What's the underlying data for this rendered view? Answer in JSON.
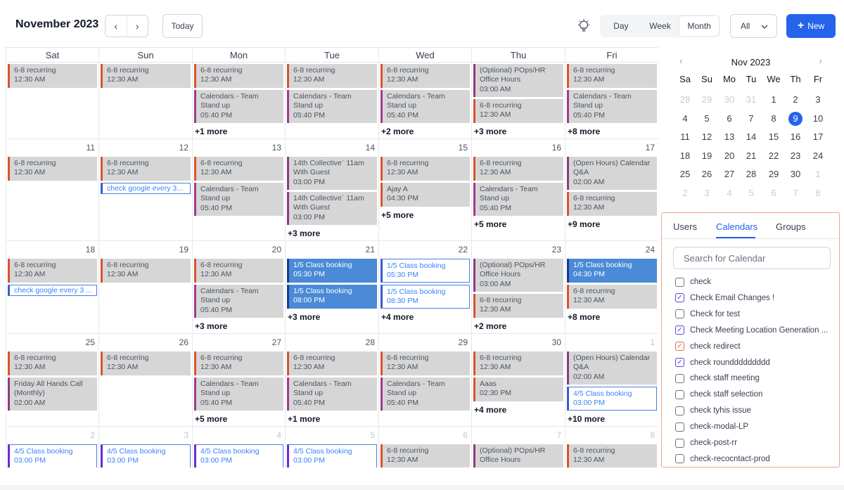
{
  "header": {
    "title": "November 2023",
    "today_label": "Today",
    "views": [
      "Day",
      "Week",
      "Month"
    ],
    "active_view": "Month",
    "filter_label": "All",
    "new_label": "New"
  },
  "weekdays": [
    "Sat",
    "Sun",
    "Mon",
    "Tue",
    "Wed",
    "Thu",
    "Fri"
  ],
  "weeks": [
    [
      {
        "day": "",
        "events": [
          {
            "t": "6-8 recurring",
            "s": "12:30 AM",
            "c": "red"
          }
        ],
        "more": ""
      },
      {
        "day": "",
        "events": [
          {
            "t": "6-8 recurring",
            "s": "12:30 AM",
            "c": "red"
          }
        ],
        "more": ""
      },
      {
        "day": "",
        "events": [
          {
            "t": "6-8 recurring",
            "s": "12:30 AM",
            "c": "red"
          },
          {
            "t": "Calendars - Team",
            "t2": "Stand up",
            "s": "05:40 PM",
            "c": "purple"
          }
        ],
        "more": "+1 more"
      },
      {
        "day": "",
        "events": [
          {
            "t": "6-8 recurring",
            "s": "12:30 AM",
            "c": "red"
          },
          {
            "t": "Calendars - Team",
            "t2": "Stand up",
            "s": "05:40 PM",
            "c": "purple"
          }
        ],
        "more": ""
      },
      {
        "day": "",
        "events": [
          {
            "t": "6-8 recurring",
            "s": "12:30 AM",
            "c": "red"
          },
          {
            "t": "Calendars - Team",
            "t2": "Stand up",
            "s": "05:40 PM",
            "c": "purple"
          }
        ],
        "more": "+2 more"
      },
      {
        "day": "",
        "events": [
          {
            "t": "(Optional) POps/HR",
            "t2": "Office Hours",
            "s": "03:00 AM",
            "c": "plum"
          },
          {
            "t": "6-8 recurring",
            "s": "12:30 AM",
            "c": "red"
          }
        ],
        "more": "+3 more"
      },
      {
        "day": "",
        "events": [
          {
            "t": "6-8 recurring",
            "s": "12:30 AM",
            "c": "red"
          },
          {
            "t": "Calendars - Team",
            "t2": "Stand up",
            "s": "05:40 PM",
            "c": "purple"
          }
        ],
        "more": "+8 more"
      }
    ],
    [
      {
        "day": "11",
        "events": [
          {
            "t": "6-8 recurring",
            "s": "12:30 AM",
            "c": "red"
          }
        ],
        "more": ""
      },
      {
        "day": "12",
        "events": [
          {
            "t": "6-8 recurring",
            "s": "12:30 AM",
            "c": "red"
          },
          {
            "t": "check google every 3...",
            "c": "outline",
            "single": true
          }
        ],
        "more": ""
      },
      {
        "day": "13",
        "events": [
          {
            "t": "6-8 recurring",
            "s": "12:30 AM",
            "c": "red"
          },
          {
            "t": "Calendars - Team",
            "t2": "Stand up",
            "s": "05:40 PM",
            "c": "purple"
          }
        ],
        "more": ""
      },
      {
        "day": "14",
        "events": [
          {
            "t": "14th Collective` 11am",
            "t2": "With Guest",
            "s": "03:00 PM",
            "c": "plum"
          },
          {
            "t": "14th Collective` 11am",
            "t2": "With Guest",
            "s": "03:00 PM",
            "c": "plum"
          }
        ],
        "more": "+3 more"
      },
      {
        "day": "15",
        "events": [
          {
            "t": "6-8 recurring",
            "s": "12:30 AM",
            "c": "red"
          },
          {
            "t": "Ajay A",
            "s": "04:30 PM",
            "c": "red"
          }
        ],
        "more": "+5 more"
      },
      {
        "day": "16",
        "events": [
          {
            "t": "6-8 recurring",
            "s": "12:30 AM",
            "c": "red"
          },
          {
            "t": "Calendars - Team",
            "t2": "Stand up",
            "s": "05:40 PM",
            "c": "purple"
          }
        ],
        "more": "+5 more"
      },
      {
        "day": "17",
        "events": [
          {
            "t": "(Open Hours) Calendar",
            "t2": "Q&A",
            "s": "02:00 AM",
            "c": "plum"
          },
          {
            "t": "6-8 recurring",
            "s": "12:30 AM",
            "c": "red"
          }
        ],
        "more": "+9 more"
      }
    ],
    [
      {
        "day": "18",
        "events": [
          {
            "t": "6-8 recurring",
            "s": "12:30 AM",
            "c": "red"
          },
          {
            "t": "check google every 3 ...",
            "c": "outline",
            "single": true
          }
        ],
        "more": ""
      },
      {
        "day": "19",
        "events": [
          {
            "t": "6-8 recurring",
            "s": "12:30 AM",
            "c": "red"
          }
        ],
        "more": ""
      },
      {
        "day": "20",
        "events": [
          {
            "t": "6-8 recurring",
            "s": "12:30 AM",
            "c": "red"
          },
          {
            "t": "Calendars - Team",
            "t2": "Stand up",
            "s": "05:40 PM",
            "c": "purple"
          }
        ],
        "more": "+3 more"
      },
      {
        "day": "21",
        "events": [
          {
            "t": "1/5  Class booking",
            "s": "05:30 PM",
            "c": "blue"
          },
          {
            "t": "1/5  Class booking",
            "s": "08:00 PM",
            "c": "blue"
          }
        ],
        "more": "+3 more"
      },
      {
        "day": "22",
        "events": [
          {
            "t": "1/5  Class booking",
            "s": "05:30 PM",
            "c": "outline"
          },
          {
            "t": "1/5  Class booking",
            "s": "08:30 PM",
            "c": "outline"
          }
        ],
        "more": "+4 more"
      },
      {
        "day": "23",
        "events": [
          {
            "t": "(Optional) POps/HR",
            "t2": "Office Hours",
            "s": "03:00 AM",
            "c": "plum"
          },
          {
            "t": "6-8 recurring",
            "s": "12:30 AM",
            "c": "red"
          }
        ],
        "more": "+2 more"
      },
      {
        "day": "24",
        "events": [
          {
            "t": "1/5  Class booking",
            "s": "04:30 PM",
            "c": "blue"
          },
          {
            "t": "6-8 recurring",
            "s": "12:30 AM",
            "c": "red"
          }
        ],
        "more": "+8 more"
      }
    ],
    [
      {
        "day": "25",
        "events": [
          {
            "t": "6-8 recurring",
            "s": "12:30 AM",
            "c": "red"
          },
          {
            "t": "Friday All Hands Call",
            "t2": "(Monthly)",
            "s": "02:00 AM",
            "c": "plum"
          }
        ],
        "more": ""
      },
      {
        "day": "26",
        "events": [
          {
            "t": "6-8 recurring",
            "s": "12:30 AM",
            "c": "red"
          }
        ],
        "more": ""
      },
      {
        "day": "27",
        "events": [
          {
            "t": "6-8 recurring",
            "s": "12:30 AM",
            "c": "red"
          },
          {
            "t": "Calendars - Team",
            "t2": "Stand up",
            "s": "05:40 PM",
            "c": "purple"
          }
        ],
        "more": "+5 more"
      },
      {
        "day": "28",
        "events": [
          {
            "t": "6-8 recurring",
            "s": "12:30 AM",
            "c": "red"
          },
          {
            "t": "Calendars - Team",
            "t2": "Stand up",
            "s": "05:40 PM",
            "c": "purple"
          }
        ],
        "more": "+1 more"
      },
      {
        "day": "29",
        "events": [
          {
            "t": "6-8 recurring",
            "s": "12:30 AM",
            "c": "red"
          },
          {
            "t": "Calendars - Team",
            "t2": "Stand up",
            "s": "05:40 PM",
            "c": "purple"
          }
        ],
        "more": ""
      },
      {
        "day": "30",
        "events": [
          {
            "t": "6-8 recurring",
            "s": "12:30 AM",
            "c": "red"
          },
          {
            "t": "Aaas",
            "s": "02:30 PM",
            "c": "red"
          }
        ],
        "more": "+4 more"
      },
      {
        "day": "1",
        "muted": true,
        "events": [
          {
            "t": "(Open Hours) Calendar",
            "t2": "Q&A",
            "s": "02:00 AM",
            "c": "plum"
          },
          {
            "t": "4/5  Class booking",
            "s": "03:00 PM",
            "c": "outline"
          }
        ],
        "more": "+10 more"
      }
    ],
    [
      {
        "day": "2",
        "muted": true,
        "events": [
          {
            "t": "4/5  Class booking",
            "s": "03:00 PM",
            "c": "outline2"
          }
        ],
        "more": ""
      },
      {
        "day": "3",
        "muted": true,
        "events": [
          {
            "t": "4/5  Class booking",
            "s": "03:00 PM",
            "c": "outline2"
          }
        ],
        "more": ""
      },
      {
        "day": "4",
        "muted": true,
        "events": [
          {
            "t": "4/5  Class booking",
            "s": "03:00 PM",
            "c": "outline2"
          }
        ],
        "more": ""
      },
      {
        "day": "5",
        "muted": true,
        "events": [
          {
            "t": "4/5  Class booking",
            "s": "03:00 PM",
            "c": "outline2"
          }
        ],
        "more": ""
      },
      {
        "day": "6",
        "muted": true,
        "events": [
          {
            "t": "6-8 recurring",
            "s": "12:30 AM",
            "c": "red"
          }
        ],
        "more": ""
      },
      {
        "day": "7",
        "muted": true,
        "events": [
          {
            "t": "(Optional) POps/HR",
            "t2": "Office Hours",
            "s": "",
            "c": "plum"
          }
        ],
        "more": ""
      },
      {
        "day": "8",
        "muted": true,
        "events": [
          {
            "t": "6-8 recurring",
            "s": "12:30 AM",
            "c": "red"
          }
        ],
        "more": ""
      }
    ]
  ],
  "mini_calendar": {
    "title": "Nov 2023",
    "weekdays": [
      "Sa",
      "Su",
      "Mo",
      "Tu",
      "We",
      "Th",
      "Fr"
    ],
    "rows": [
      [
        "28",
        "29",
        "30",
        "31",
        "1",
        "2",
        "3"
      ],
      [
        "4",
        "5",
        "6",
        "7",
        "8",
        "9",
        "10"
      ],
      [
        "11",
        "12",
        "13",
        "14",
        "15",
        "16",
        "17"
      ],
      [
        "18",
        "19",
        "20",
        "21",
        "22",
        "23",
        "24"
      ],
      [
        "25",
        "26",
        "27",
        "28",
        "29",
        "30",
        "1"
      ],
      [
        "2",
        "3",
        "4",
        "5",
        "6",
        "7",
        "8"
      ]
    ],
    "today": "9"
  },
  "panel": {
    "tabs": [
      "Users",
      "Calendars",
      "Groups"
    ],
    "active_tab": "Calendars",
    "search_placeholder": "Search for Calendar",
    "calendars": [
      {
        "name": "check",
        "checked": false
      },
      {
        "name": "Check Email Changes !",
        "checked": true
      },
      {
        "name": "Check for test",
        "checked": false
      },
      {
        "name": "Check Meeting Location Generation ...",
        "checked": true
      },
      {
        "name": "check redirect",
        "checked": true,
        "color": "orange"
      },
      {
        "name": "check rounddddddddd",
        "checked": true
      },
      {
        "name": "check staff meeting",
        "checked": false
      },
      {
        "name": "check staff selection",
        "checked": false
      },
      {
        "name": "check tyhis issue",
        "checked": false
      },
      {
        "name": "check-modal-LP",
        "checked": false
      },
      {
        "name": "check-post-rr",
        "checked": false
      },
      {
        "name": "check-recocntact-prod",
        "checked": false
      }
    ]
  },
  "colors": {
    "accent": "#2563eb",
    "event_gray": "#d6d6d6",
    "event_blue": "#4a8ad7",
    "red_bar": "#d9532d",
    "purple_bar": "#a03a8c"
  }
}
